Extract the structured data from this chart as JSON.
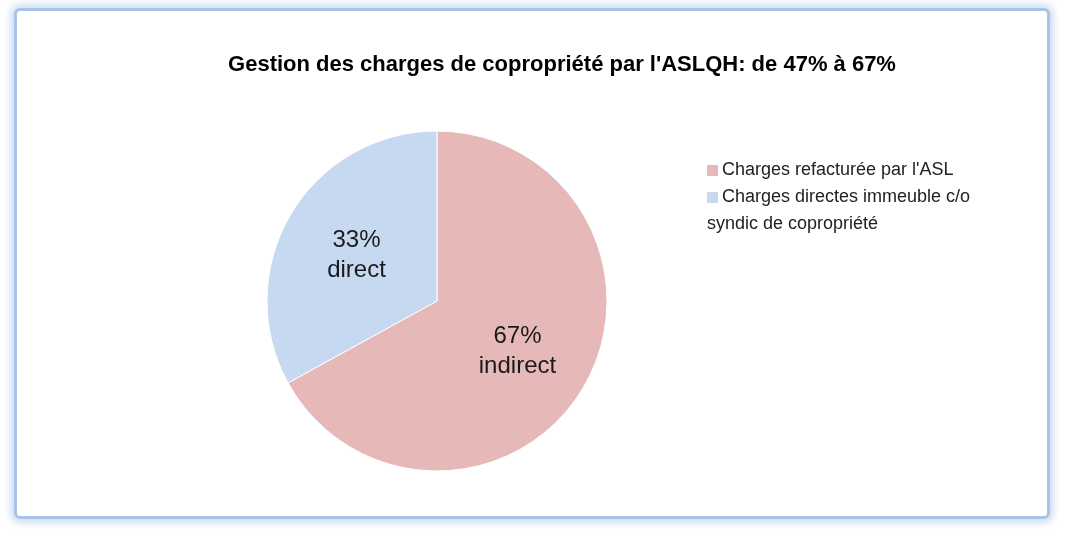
{
  "chart_data": {
    "type": "pie",
    "title": "Gestion des charges de copropriété par l'ASLQH: de 47% à 67%",
    "categories": [
      "Charges refacturée par l'ASL",
      "Charges directes immeuble c/o syndic de copropriété"
    ],
    "values": [
      67,
      33
    ],
    "colors": [
      "#e6b9b8",
      "#c6d9f1"
    ],
    "value_labels": [
      "67%\nindirect",
      "33%\ndirect"
    ],
    "legend": "right"
  }
}
